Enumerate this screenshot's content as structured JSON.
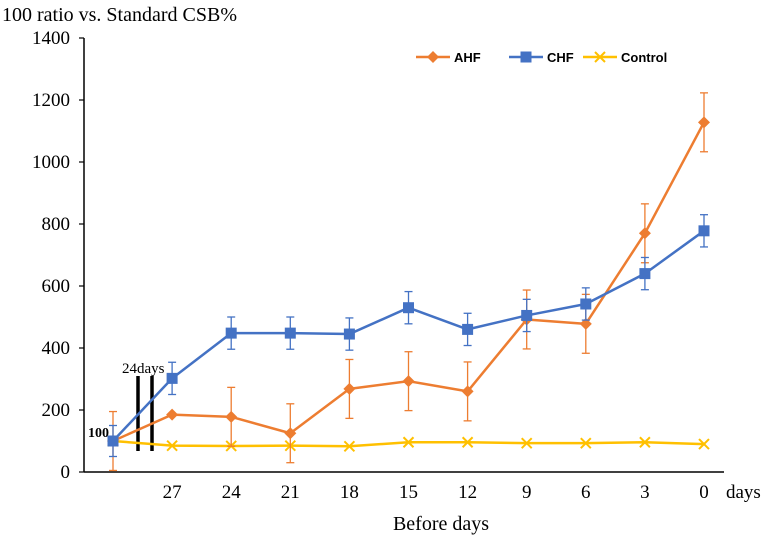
{
  "chart_data": {
    "type": "line",
    "ytitle": "100 ratio vs. Standard CSB%",
    "xlabel": "Before days",
    "x_unit_label": "days",
    "ylim": [
      0,
      1400
    ],
    "y_ticks": [
      0,
      200,
      400,
      600,
      800,
      1000,
      1200,
      1400
    ],
    "y_tick_labels": [
      "0",
      "200",
      "400",
      "600",
      "800",
      "1000",
      "1200",
      "1400"
    ],
    "x_positions": [
      "start",
      "27",
      "24",
      "21",
      "18",
      "15",
      "12",
      "9",
      "6",
      "3",
      "0"
    ],
    "x_tick_labels": [
      "27",
      "24",
      "21",
      "18",
      "15",
      "12",
      "9",
      "6",
      "3",
      "0"
    ],
    "legend_position": "top-right",
    "annotations": {
      "start_value": "100",
      "gap_label": "24days"
    },
    "series": [
      {
        "name": "AHF",
        "color": "#ED7D31",
        "marker": "diamond",
        "values": [
          100,
          185,
          178,
          125,
          268,
          293,
          260,
          492,
          478,
          770,
          1128
        ],
        "errors": [
          95,
          0,
          95,
          95,
          95,
          95,
          95,
          95,
          95,
          95,
          95
        ]
      },
      {
        "name": "CHF",
        "color": "#4472C4",
        "marker": "square",
        "values": [
          100,
          302,
          448,
          448,
          445,
          530,
          460,
          505,
          542,
          640,
          778
        ],
        "errors": [
          50,
          52,
          52,
          52,
          52,
          52,
          52,
          52,
          52,
          52,
          52
        ]
      },
      {
        "name": "Control",
        "color": "#FFC000",
        "marker": "x",
        "values": [
          100,
          85,
          84,
          85,
          83,
          96,
          96,
          93,
          93,
          96,
          90
        ],
        "errors": [
          0,
          0,
          0,
          0,
          0,
          0,
          0,
          0,
          0,
          0,
          0
        ]
      }
    ]
  }
}
